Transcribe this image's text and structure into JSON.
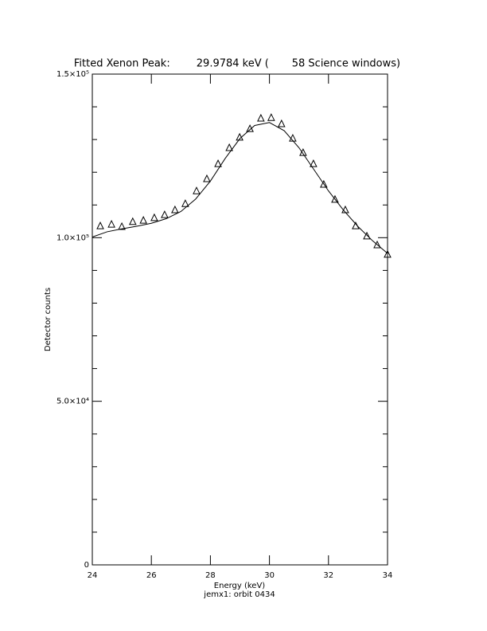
{
  "chart_data": {
    "type": "scatter",
    "title": "Fitted Xenon Peak:        29.9784 keV (       58 Science windows)",
    "x_label": "Energy (keV)",
    "subtitle": "jemx1: orbit 0434",
    "y_label": "Detector counts",
    "color": "#000000",
    "marker": "triangle",
    "x": [
      24.27,
      24.65,
      25.0,
      25.37,
      25.73,
      26.1,
      26.45,
      26.8,
      27.15,
      27.53,
      27.88,
      28.26,
      28.64,
      28.99,
      29.34,
      29.71,
      30.06,
      30.41,
      30.79,
      31.14,
      31.49,
      31.84,
      32.22,
      32.57,
      32.92,
      33.3,
      33.65,
      34.0
    ],
    "values": [
      103700,
      104200,
      103500,
      105000,
      105400,
      106200,
      107100,
      108600,
      110500,
      114400,
      118100,
      122700,
      127600,
      130800,
      133400,
      136600,
      136800,
      134900,
      130500,
      126100,
      122700,
      116400,
      111800,
      108600,
      103700,
      100600,
      97900,
      95000
    ],
    "fit": {
      "x": [
        24,
        24.5,
        25,
        25.5,
        26,
        26.5,
        27,
        27.5,
        28,
        28.5,
        29,
        29.5,
        30,
        30.5,
        31,
        31.5,
        32,
        32.5,
        33,
        33.5,
        34
      ],
      "values": [
        100200,
        101800,
        102700,
        103500,
        104400,
        105800,
        108000,
        111800,
        117300,
        124200,
        130300,
        134300,
        135200,
        132700,
        127500,
        120900,
        114300,
        108500,
        103400,
        99000,
        95200
      ]
    },
    "xlim": [
      24,
      34
    ],
    "xticks": [
      24,
      26,
      28,
      30,
      32,
      34
    ],
    "ylim": [
      0,
      150000
    ],
    "yticks": [
      {
        "value": 0,
        "label": "0"
      },
      {
        "value": 50000,
        "label": "5.0×10⁴"
      },
      {
        "value": 100000,
        "label": "1.0×10⁵"
      },
      {
        "value": 150000,
        "label": "1.5×10⁵"
      }
    ],
    "yticks_minor": [
      10000,
      20000,
      30000,
      40000,
      60000,
      70000,
      80000,
      90000,
      110000,
      120000,
      130000,
      140000
    ],
    "grid": false
  }
}
